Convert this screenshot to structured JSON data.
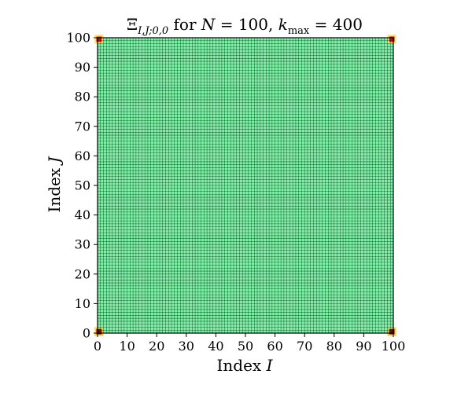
{
  "chart_data": {
    "type": "heatmap",
    "title": {
      "base": "Ξ",
      "subscript": "I,J;0,0",
      "middle": " for ",
      "n_var": "N",
      "n_eq": " = 100, ",
      "k_var": "k",
      "k_sub": "max",
      "k_eq": " = 400"
    },
    "xlabel": {
      "text": "Index ",
      "var": "I"
    },
    "ylabel": {
      "text": "Index ",
      "var": "J"
    },
    "xlim": [
      0,
      100
    ],
    "ylim": [
      0,
      100
    ],
    "x_ticks": [
      0,
      10,
      20,
      30,
      40,
      50,
      60,
      70,
      80,
      90,
      100
    ],
    "y_ticks": [
      0,
      10,
      20,
      30,
      40,
      50,
      60,
      70,
      80,
      90,
      100
    ],
    "grid": true,
    "grid_cells": 100,
    "background_value_color": "#80f0a8",
    "grid_color": "#0b3d1c",
    "hot_spots": [
      {
        "corner": "bottom-left",
        "x": 1,
        "y": 1,
        "color": "#7a0000",
        "halo": "#ffcc33"
      },
      {
        "corner": "bottom-right",
        "x": 100,
        "y": 1,
        "color": "#7a0000",
        "halo": "#ffcc33"
      },
      {
        "corner": "top-left",
        "x": 1,
        "y": 100,
        "color": "#c41010",
        "halo": "#ffdd66"
      },
      {
        "corner": "top-right",
        "x": 100,
        "y": 100,
        "color": "#c41010",
        "halo": "#ffdd66"
      }
    ]
  }
}
